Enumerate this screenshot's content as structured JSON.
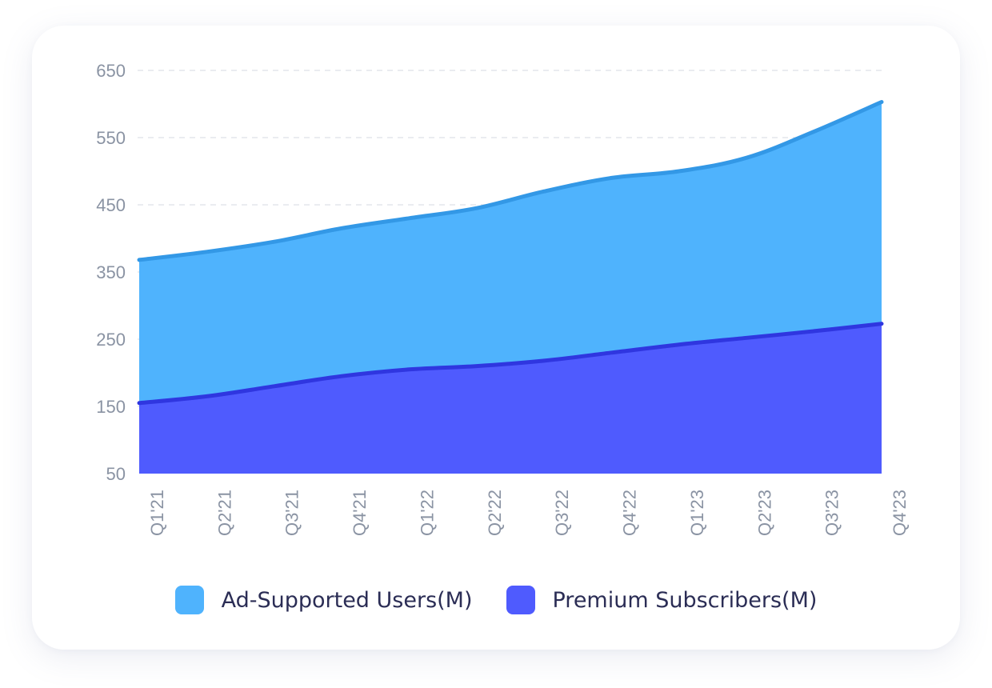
{
  "chart_data": {
    "type": "area",
    "stacked": true,
    "categories": [
      "Q1'21",
      "Q2'21",
      "Q3'21",
      "Q4'21",
      "Q1'22",
      "Q2'22",
      "Q3'22",
      "Q4'22",
      "Q1'23",
      "Q2'23",
      "Q3'23",
      "Q4'23"
    ],
    "series": [
      {
        "name": "Premium Subscribers(M)",
        "values": [
          155,
          165,
          180,
          195,
          205,
          210,
          218,
          230,
          242,
          252,
          262,
          273
        ],
        "color": "#4f5bfe",
        "line_color": "#2f36e0"
      },
      {
        "name": "Ad-Supported Users(M)",
        "values": [
          213,
          215,
          215,
          220,
          225,
          235,
          252,
          260,
          258,
          268,
          297,
          330
        ],
        "color": "#4fb3fd",
        "line_color": "#3398e6"
      }
    ],
    "stacked_totals": [
      368,
      380,
      395,
      415,
      430,
      445,
      470,
      490,
      500,
      520,
      559,
      603
    ],
    "yticks": [
      50,
      150,
      250,
      350,
      450,
      550,
      650
    ],
    "ylim": [
      50,
      650
    ],
    "grid": true,
    "title": "",
    "xlabel": "",
    "ylabel": "",
    "legend_position": "bottom"
  },
  "legend": {
    "items": [
      {
        "label": "Ad-Supported Users(M)",
        "color": "#4fb3fd"
      },
      {
        "label": "Premium Subscribers(M)",
        "color": "#4f5bfe"
      }
    ]
  }
}
